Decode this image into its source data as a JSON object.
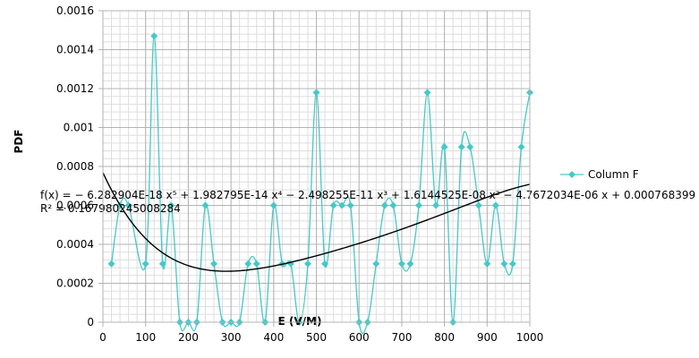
{
  "chart_data": {
    "type": "scatter",
    "title": "",
    "xlabel": "E (V/M)",
    "ylabel": "PDF",
    "xlim": [
      0,
      1000
    ],
    "ylim": [
      0,
      0.0016
    ],
    "x_ticks": [
      0,
      100,
      200,
      300,
      400,
      500,
      600,
      700,
      800,
      900,
      1000
    ],
    "y_ticks": [
      0,
      0.0002,
      0.0004,
      0.0006,
      0.0008,
      0.001,
      0.0012,
      0.0014,
      0.0016
    ],
    "x_tick_labels": [
      "0",
      "100",
      "200",
      "300",
      "400",
      "500",
      "600",
      "700",
      "800",
      "900",
      "1000"
    ],
    "y_tick_labels": [
      "0",
      "0.0002",
      "0.0004",
      "0.0006",
      "0.0008",
      "0.001",
      "0.0012",
      "0.0014",
      "0.0016"
    ],
    "grid": true,
    "legend_position": "right",
    "series": [
      {
        "name": "Column F",
        "color": "#46c8c8",
        "marker": "diamond",
        "smoothed": true,
        "points": [
          [
            20,
            0.0003
          ],
          [
            40,
            0.0006
          ],
          [
            60,
            0.0006
          ],
          [
            100,
            0.0003
          ],
          [
            120,
            0.00147
          ],
          [
            140,
            0.0003
          ],
          [
            160,
            0.0006
          ],
          [
            180,
            0
          ],
          [
            200,
            0
          ],
          [
            220,
            0
          ],
          [
            240,
            0.0006
          ],
          [
            260,
            0.0003
          ],
          [
            280,
            0
          ],
          [
            300,
            0
          ],
          [
            320,
            0
          ],
          [
            340,
            0.0003
          ],
          [
            360,
            0.0003
          ],
          [
            380,
            0
          ],
          [
            400,
            0.0006
          ],
          [
            420,
            0.0003
          ],
          [
            440,
            0.0003
          ],
          [
            460,
            0
          ],
          [
            480,
            0.0003
          ],
          [
            500,
            0.00118
          ],
          [
            520,
            0.0003
          ],
          [
            540,
            0.0006
          ],
          [
            560,
            0.0006
          ],
          [
            580,
            0.0006
          ],
          [
            600,
            0
          ],
          [
            620,
            0
          ],
          [
            640,
            0.0003
          ],
          [
            660,
            0.0006
          ],
          [
            680,
            0.0006
          ],
          [
            700,
            0.0003
          ],
          [
            720,
            0.0003
          ],
          [
            740,
            0.0006
          ],
          [
            760,
            0.00118
          ],
          [
            780,
            0.0006
          ],
          [
            800,
            0.0009
          ],
          [
            820,
            0
          ],
          [
            840,
            0.0009
          ],
          [
            860,
            0.0009
          ],
          [
            880,
            0.0006
          ],
          [
            900,
            0.0003
          ],
          [
            920,
            0.0006
          ],
          [
            940,
            0.0003
          ],
          [
            960,
            0.0003
          ],
          [
            980,
            0.0009
          ],
          [
            1000,
            0.00118
          ]
        ]
      }
    ],
    "trendline": {
      "type": "polynomial",
      "order": 5,
      "color": "#000000",
      "coefficients": [
        0.000768399,
        -4.7672034e-06,
        1.6144525e-08,
        -2.498255e-11,
        1.982795e-14,
        -6.282904e-18
      ],
      "equation_text": "f(x) = − 6.282904E-18 x⁵ + 1.982795E-14 x⁴ − 2.498255E-11 x³ + 1.6144525E-08 x² − 4.7672034E-06 x + 0.000768399",
      "r2_text": "R² = 0.167980245008284"
    }
  }
}
